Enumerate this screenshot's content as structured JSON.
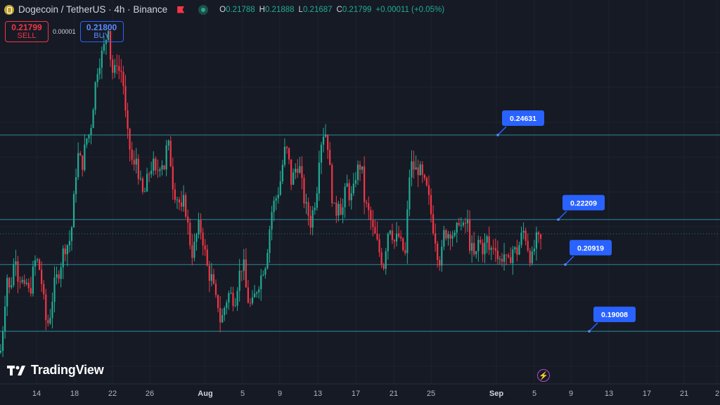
{
  "header": {
    "title": "Dogecoin / TetherUS · 4h · Binance",
    "ohlc": [
      {
        "k": "O",
        "v": "0.21788"
      },
      {
        "k": "H",
        "v": "0.21888"
      },
      {
        "k": "L",
        "v": "0.21687"
      },
      {
        "k": "C",
        "v": "0.21799"
      },
      {
        "k": "",
        "v": "+0.00011 (+0.05%)"
      }
    ]
  },
  "trade": {
    "sell_price": "0.21799",
    "sell_label": "SELL",
    "spread": "0.00001",
    "buy_price": "0.21800",
    "buy_label": "BUY"
  },
  "branding": {
    "logo_text": "TradingView"
  },
  "colors": {
    "up": "#22ab94",
    "down": "#f23645",
    "level_line": "#2a8a9c",
    "label_bg": "#2962ff"
  },
  "chart_data": {
    "type": "candlestick",
    "title": "Dogecoin / TetherUS · 4h · Binance",
    "x_tick_labels": [
      "14",
      "18",
      "22",
      "26",
      "Aug",
      "5",
      "9",
      "13",
      "17",
      "21",
      "25",
      "Sep",
      "5",
      "9",
      "13",
      "17",
      "21",
      "2"
    ],
    "ylim": [
      0.175,
      0.285
    ],
    "grid": true,
    "levels": [
      0.24631,
      0.22209,
      0.20919,
      0.19008
    ],
    "level_labels": [
      "0.24631",
      "0.22209",
      "0.20919",
      "0.19008"
    ],
    "last_price": 0.21799,
    "path": [
      [
        0,
        0.184
      ],
      [
        2,
        0.185
      ],
      [
        5,
        0.194
      ],
      [
        10,
        0.206
      ],
      [
        14,
        0.201
      ],
      [
        18,
        0.207
      ],
      [
        22,
        0.213
      ],
      [
        26,
        0.205
      ],
      [
        30,
        0.206
      ],
      [
        34,
        0.201
      ],
      [
        38,
        0.204
      ],
      [
        42,
        0.2
      ],
      [
        46,
        0.206
      ],
      [
        50,
        0.21
      ],
      [
        54,
        0.21
      ],
      [
        58,
        0.206
      ],
      [
        62,
        0.199
      ],
      [
        66,
        0.192
      ],
      [
        70,
        0.193
      ],
      [
        74,
        0.199
      ],
      [
        78,
        0.204
      ],
      [
        82,
        0.206
      ],
      [
        86,
        0.209
      ],
      [
        90,
        0.213
      ],
      [
        94,
        0.215
      ],
      [
        98,
        0.215
      ],
      [
        102,
        0.22
      ],
      [
        106,
        0.23
      ],
      [
        110,
        0.241
      ],
      [
        114,
        0.239
      ],
      [
        118,
        0.238
      ],
      [
        122,
        0.245
      ],
      [
        126,
        0.246
      ],
      [
        130,
        0.25
      ],
      [
        134,
        0.258
      ],
      [
        138,
        0.265
      ],
      [
        142,
        0.268
      ],
      [
        146,
        0.27
      ],
      [
        150,
        0.273
      ],
      [
        154,
        0.278
      ],
      [
        158,
        0.266
      ],
      [
        162,
        0.263
      ],
      [
        166,
        0.268
      ],
      [
        170,
        0.264
      ],
      [
        174,
        0.265
      ],
      [
        178,
        0.253
      ],
      [
        182,
        0.245
      ],
      [
        186,
        0.241
      ],
      [
        190,
        0.236
      ],
      [
        194,
        0.24
      ],
      [
        198,
        0.234
      ],
      [
        202,
        0.229
      ],
      [
        206,
        0.23
      ],
      [
        210,
        0.234
      ],
      [
        214,
        0.237
      ],
      [
        218,
        0.238
      ],
      [
        222,
        0.234
      ],
      [
        226,
        0.238
      ],
      [
        230,
        0.239
      ],
      [
        234,
        0.237
      ],
      [
        238,
        0.245
      ],
      [
        242,
        0.24
      ],
      [
        246,
        0.232
      ],
      [
        250,
        0.229
      ],
      [
        254,
        0.228
      ],
      [
        258,
        0.224
      ],
      [
        262,
        0.228
      ],
      [
        266,
        0.222
      ],
      [
        270,
        0.216
      ],
      [
        274,
        0.212
      ],
      [
        278,
        0.216
      ],
      [
        282,
        0.22
      ],
      [
        286,
        0.219
      ],
      [
        290,
        0.215
      ],
      [
        294,
        0.209
      ],
      [
        298,
        0.206
      ],
      [
        302,
        0.205
      ],
      [
        306,
        0.199
      ],
      [
        310,
        0.198
      ],
      [
        314,
        0.192
      ],
      [
        318,
        0.196
      ],
      [
        322,
        0.199
      ],
      [
        326,
        0.201
      ],
      [
        330,
        0.2
      ],
      [
        334,
        0.199
      ],
      [
        338,
        0.204
      ],
      [
        342,
        0.208
      ],
      [
        346,
        0.21
      ],
      [
        350,
        0.202
      ],
      [
        354,
        0.198
      ],
      [
        358,
        0.197
      ],
      [
        362,
        0.2
      ],
      [
        366,
        0.203
      ],
      [
        370,
        0.205
      ],
      [
        374,
        0.208
      ],
      [
        378,
        0.21
      ],
      [
        382,
        0.217
      ],
      [
        386,
        0.224
      ],
      [
        390,
        0.227
      ],
      [
        394,
        0.229
      ],
      [
        398,
        0.232
      ],
      [
        402,
        0.238
      ],
      [
        406,
        0.243
      ],
      [
        410,
        0.24
      ],
      [
        414,
        0.233
      ],
      [
        418,
        0.235
      ],
      [
        422,
        0.238
      ],
      [
        426,
        0.237
      ],
      [
        430,
        0.231
      ],
      [
        434,
        0.226
      ],
      [
        438,
        0.224
      ],
      [
        442,
        0.221
      ],
      [
        446,
        0.226
      ],
      [
        450,
        0.229
      ],
      [
        454,
        0.241
      ],
      [
        458,
        0.246
      ],
      [
        462,
        0.248
      ],
      [
        466,
        0.244
      ],
      [
        470,
        0.234
      ],
      [
        474,
        0.225
      ],
      [
        478,
        0.224
      ],
      [
        482,
        0.229
      ],
      [
        486,
        0.223
      ],
      [
        490,
        0.229
      ],
      [
        494,
        0.232
      ],
      [
        498,
        0.228
      ],
      [
        502,
        0.229
      ],
      [
        506,
        0.235
      ],
      [
        510,
        0.237
      ],
      [
        514,
        0.238
      ],
      [
        518,
        0.228
      ],
      [
        522,
        0.225
      ],
      [
        526,
        0.223
      ],
      [
        530,
        0.219
      ],
      [
        534,
        0.217
      ],
      [
        538,
        0.214
      ],
      [
        542,
        0.211
      ],
      [
        546,
        0.209
      ],
      [
        550,
        0.217
      ],
      [
        554,
        0.221
      ],
      [
        558,
        0.218
      ],
      [
        562,
        0.215
      ],
      [
        566,
        0.218
      ],
      [
        570,
        0.215
      ],
      [
        574,
        0.213
      ],
      [
        578,
        0.211
      ],
      [
        580,
        0.23
      ],
      [
        584,
        0.238
      ],
      [
        588,
        0.237
      ],
      [
        592,
        0.236
      ],
      [
        596,
        0.237
      ],
      [
        600,
        0.234
      ],
      [
        604,
        0.232
      ],
      [
        608,
        0.23
      ],
      [
        612,
        0.225
      ],
      [
        616,
        0.22
      ],
      [
        620,
        0.216
      ],
      [
        624,
        0.21
      ],
      [
        628,
        0.212
      ],
      [
        632,
        0.219
      ],
      [
        636,
        0.218
      ],
      [
        640,
        0.219
      ],
      [
        644,
        0.218
      ],
      [
        648,
        0.216
      ],
      [
        652,
        0.223
      ],
      [
        656,
        0.22
      ],
      [
        660,
        0.219
      ],
      [
        664,
        0.223
      ],
      [
        668,
        0.215
      ],
      [
        672,
        0.213
      ],
      [
        676,
        0.21
      ],
      [
        680,
        0.216
      ],
      [
        684,
        0.215
      ],
      [
        688,
        0.213
      ],
      [
        692,
        0.217
      ],
      [
        696,
        0.213
      ],
      [
        700,
        0.214
      ],
      [
        704,
        0.216
      ],
      [
        708,
        0.211
      ],
      [
        712,
        0.21
      ],
      [
        716,
        0.213
      ],
      [
        720,
        0.21
      ],
      [
        724,
        0.209
      ],
      [
        728,
        0.214
      ],
      [
        732,
        0.213
      ],
      [
        736,
        0.213
      ],
      [
        740,
        0.216
      ],
      [
        744,
        0.219
      ],
      [
        748,
        0.217
      ],
      [
        752,
        0.213
      ],
      [
        756,
        0.21
      ],
      [
        760,
        0.214
      ],
      [
        764,
        0.217
      ],
      [
        768,
        0.215
      ],
      [
        772,
        0.218
      ]
    ]
  }
}
